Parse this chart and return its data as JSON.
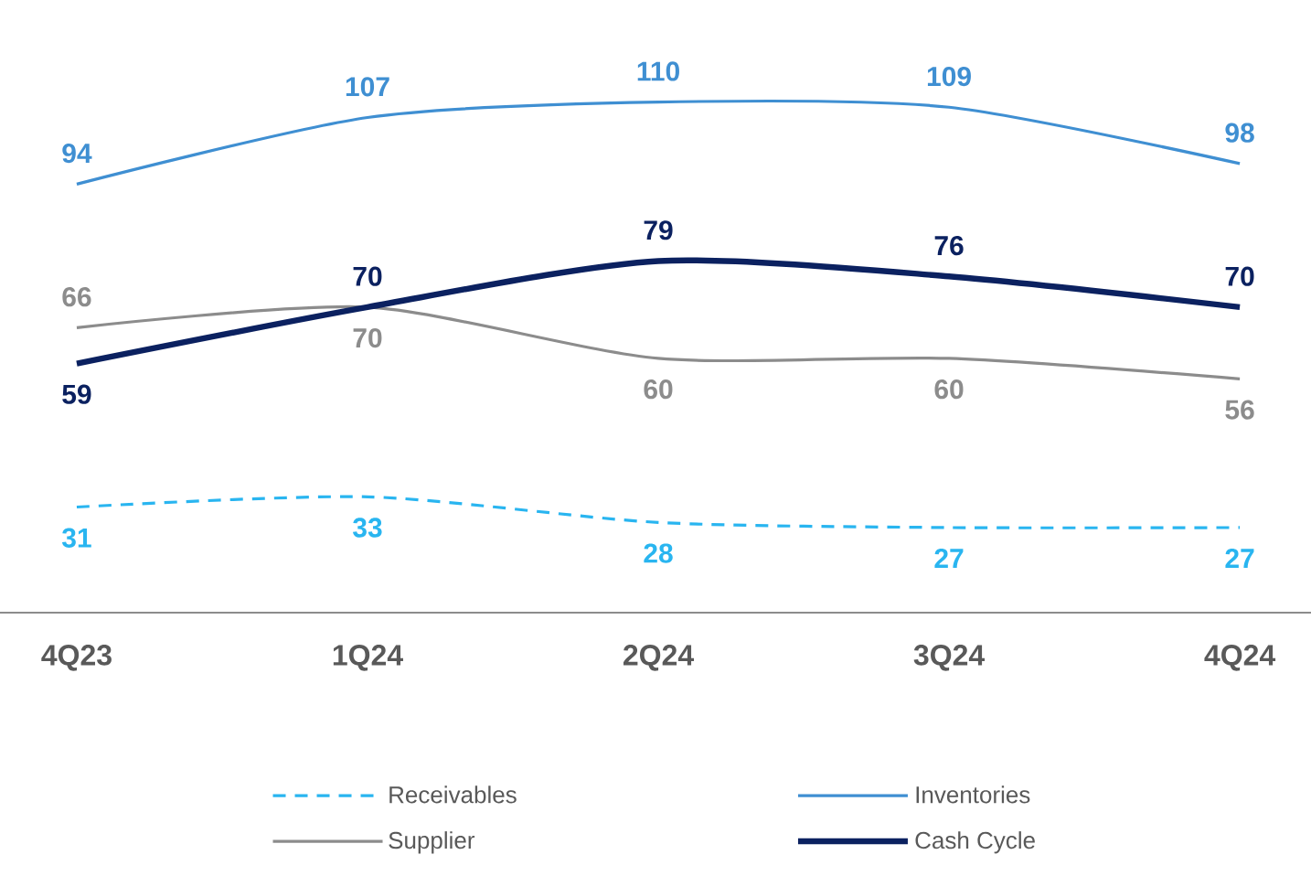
{
  "chart_data": {
    "type": "line",
    "categories": [
      "4Q23",
      "1Q24",
      "2Q24",
      "3Q24",
      "4Q24"
    ],
    "series": [
      {
        "name": "Receivables",
        "color": "#29b5f0",
        "values": [
          31,
          33,
          28,
          27,
          27
        ],
        "line_style": "dashed"
      },
      {
        "name": "Inventories",
        "color": "#3f8fd2",
        "values": [
          94,
          107,
          110,
          109,
          98
        ]
      },
      {
        "name": "Supplier",
        "color": "#8c8c8c",
        "values": [
          66,
          70,
          60,
          60,
          56
        ]
      },
      {
        "name": "Cash Cycle",
        "color": "#0b2160",
        "values": [
          59,
          70,
          79,
          76,
          70
        ]
      }
    ],
    "data_labels": true,
    "legend": "bottom",
    "marker": "none",
    "tick_labels": "x"
  }
}
